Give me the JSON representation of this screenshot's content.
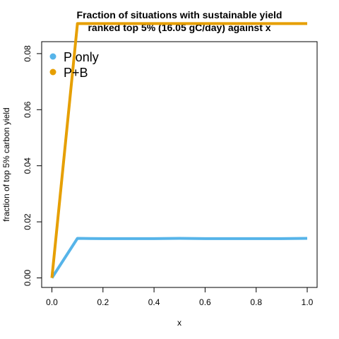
{
  "chart_data": {
    "type": "line",
    "title_line1": "Fraction of situations with sustainable yield",
    "title_line2": "ranked top 5% (16.05 gC/day) against x",
    "xlabel": "x",
    "ylabel": "fraction of top 5% carbon yield",
    "xlim": [
      0.0,
      1.0
    ],
    "ylim": [
      0.0,
      0.091
    ],
    "x_ticks": [
      "0.0",
      "0.2",
      "0.4",
      "0.6",
      "0.8",
      "1.0"
    ],
    "y_ticks": [
      "0.00",
      "0.02",
      "0.04",
      "0.06",
      "0.08"
    ],
    "legend_position": "top-left",
    "grid": false,
    "x": [
      0.0,
      0.1,
      0.2,
      0.3,
      0.4,
      0.5,
      0.6,
      0.7,
      0.8,
      0.9,
      1.0
    ],
    "series": [
      {
        "name": "P only",
        "color": "#56B4E9",
        "values": [
          0.0,
          0.0141,
          0.014,
          0.014,
          0.014,
          0.0141,
          0.014,
          0.014,
          0.014,
          0.014,
          0.0141
        ]
      },
      {
        "name": "P+B",
        "color": "#E69F00",
        "values": [
          0.0,
          0.0907,
          0.0907,
          0.0907,
          0.0907,
          0.0907,
          0.0907,
          0.0907,
          0.0907,
          0.0907,
          0.0907
        ]
      }
    ]
  }
}
